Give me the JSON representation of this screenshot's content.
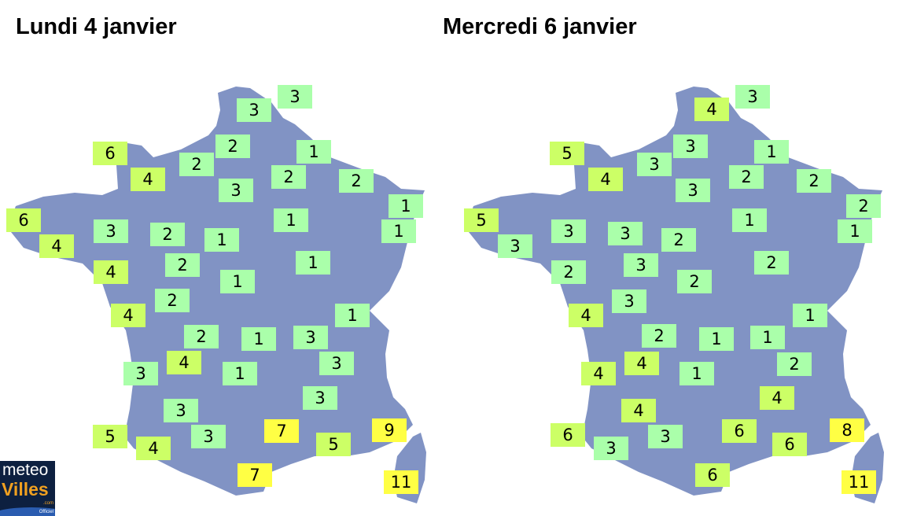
{
  "maps": [
    {
      "title": "Lundi 4 janvier",
      "temperatures": [
        3,
        3,
        6,
        2,
        1,
        2,
        4,
        2,
        2,
        3,
        1,
        6,
        1,
        3,
        2,
        1,
        4,
        1,
        2,
        1,
        4,
        1,
        2,
        4,
        1,
        2,
        1,
        3,
        4,
        3,
        3,
        1,
        3,
        3,
        5,
        7,
        9,
        3,
        4,
        5,
        7,
        11
      ]
    },
    {
      "title": "Mercredi 6 janvier",
      "temperatures": [
        3,
        4,
        5,
        3,
        1,
        3,
        4,
        2,
        2,
        3,
        2,
        5,
        1,
        3,
        3,
        1,
        3,
        2,
        3,
        2,
        2,
        2,
        3,
        4,
        1,
        2,
        1,
        1,
        4,
        2,
        4,
        1,
        4,
        4,
        6,
        6,
        8,
        3,
        3,
        6,
        6,
        11
      ]
    }
  ],
  "colors": {
    "land": "#8193c4",
    "cold": "#aaffaa",
    "mild": "#ccff66",
    "warm": "#ffff44"
  },
  "logo": {
    "line1": "meteo",
    "line2": "Villes",
    "suffix": ".com",
    "tagline": "Officiel"
  }
}
